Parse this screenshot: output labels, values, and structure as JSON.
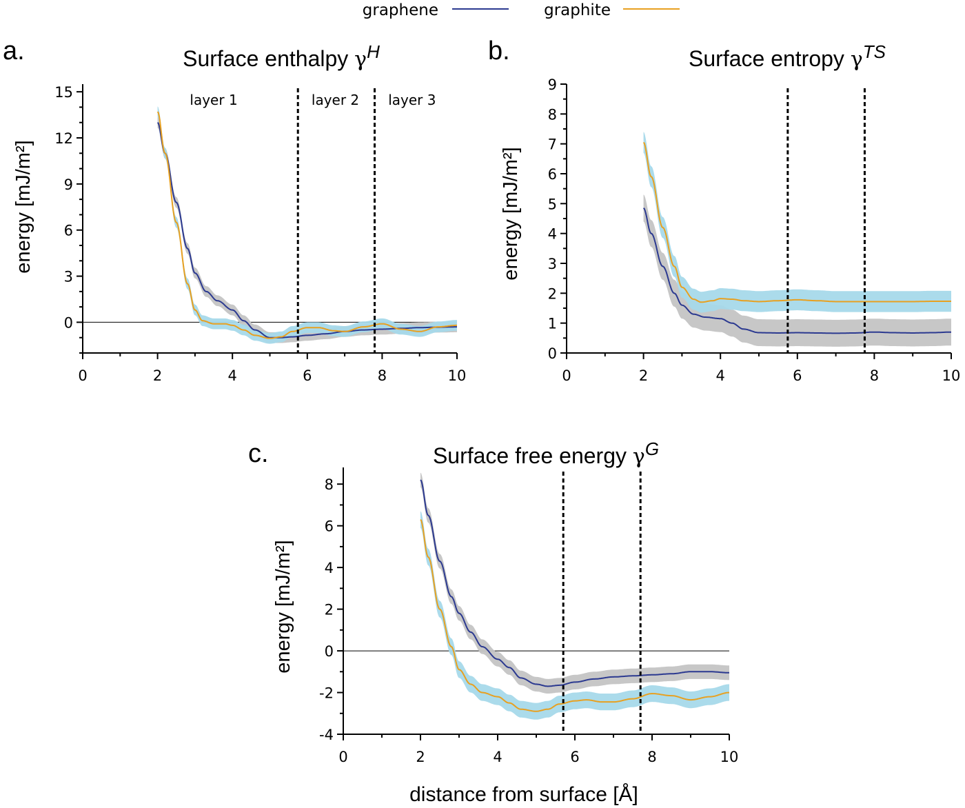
{
  "legend": [
    {
      "name": "graphene",
      "color": "#2b3990"
    },
    {
      "name": "graphite",
      "color": "#e8a020"
    }
  ],
  "colors": {
    "graphene_band": "#c4c4c4",
    "graphite_band": "#a6d9ea",
    "axis": "#000000",
    "zero_line": "#000000",
    "layer_boundary": "#000000"
  },
  "chart_data": [
    {
      "type": "line",
      "panel_letter": "a.",
      "title_main": "Surface enthalpy ",
      "title_gamma": "γ",
      "title_sup": "H",
      "ylabel": "energy [mJ/m²]",
      "xlabel": "",
      "xlim": [
        0,
        10
      ],
      "ylim": [
        -2,
        15.5
      ],
      "xticks": [
        0,
        2,
        4,
        6,
        8,
        10
      ],
      "yticks": [
        0,
        3,
        6,
        9,
        12,
        15
      ],
      "zero_line": true,
      "layer_boundaries": [
        5.75,
        7.8
      ],
      "layer_labels": [
        {
          "text": "layer 1",
          "x": 3.5
        },
        {
          "text": "layer 2",
          "x": 6.75
        },
        {
          "text": "layer 3",
          "x": 8.8
        }
      ],
      "series": [
        {
          "name": "graphene",
          "x": [
            2,
            2.2,
            2.5,
            2.8,
            3.0,
            3.3,
            3.6,
            4.0,
            4.3,
            4.6,
            5.0,
            5.3,
            5.6,
            6.0,
            6.5,
            7.0,
            7.5,
            8.0,
            8.5,
            9.0,
            9.5,
            10
          ],
          "y": [
            13.0,
            11.0,
            7.8,
            4.8,
            3.2,
            2.0,
            1.4,
            0.8,
            0.1,
            -0.5,
            -1.0,
            -1.0,
            -0.95,
            -0.85,
            -0.75,
            -0.6,
            -0.5,
            -0.45,
            -0.4,
            -0.35,
            -0.32,
            -0.3
          ],
          "band": 0.35
        },
        {
          "name": "graphite",
          "x": [
            2,
            2.2,
            2.5,
            2.8,
            3.0,
            3.2,
            3.5,
            3.8,
            4.0,
            4.3,
            4.6,
            5.0,
            5.3,
            5.6,
            6.0,
            6.3,
            6.7,
            7.0,
            7.5,
            8.0,
            8.5,
            9.0,
            9.5,
            10
          ],
          "y": [
            13.7,
            11.0,
            6.5,
            2.5,
            0.8,
            0.1,
            -0.1,
            -0.1,
            -0.2,
            -0.5,
            -0.85,
            -1.05,
            -0.95,
            -0.6,
            -0.35,
            -0.35,
            -0.55,
            -0.6,
            -0.3,
            -0.1,
            -0.45,
            -0.6,
            -0.3,
            -0.2
          ],
          "band": 0.35
        }
      ]
    },
    {
      "type": "line",
      "panel_letter": "b.",
      "title_main": "Surface entropy ",
      "title_gamma": "γ",
      "title_sup": "TS",
      "ylabel": "energy [mJ/m²]",
      "xlabel": "",
      "xlim": [
        0,
        10
      ],
      "ylim": [
        0,
        9
      ],
      "xticks": [
        0,
        2,
        4,
        6,
        8,
        10
      ],
      "yticks": [
        0,
        1,
        2,
        3,
        4,
        5,
        6,
        7,
        8,
        9
      ],
      "zero_line": false,
      "layer_boundaries": [
        5.75,
        7.75
      ],
      "layer_labels": [],
      "series": [
        {
          "name": "graphene",
          "x": [
            2,
            2.2,
            2.5,
            2.8,
            3.0,
            3.3,
            3.6,
            4.0,
            4.3,
            4.6,
            5.0,
            5.5,
            6.0,
            6.5,
            7.0,
            7.5,
            8.0,
            8.5,
            9.0,
            9.5,
            10
          ],
          "y": [
            4.85,
            4.0,
            2.9,
            2.0,
            1.6,
            1.3,
            1.2,
            1.15,
            1.0,
            0.8,
            0.68,
            0.67,
            0.68,
            0.67,
            0.66,
            0.67,
            0.7,
            0.68,
            0.67,
            0.68,
            0.7
          ],
          "band": 0.45
        },
        {
          "name": "graphite",
          "x": [
            2,
            2.2,
            2.5,
            2.8,
            3.0,
            3.3,
            3.5,
            3.8,
            4.0,
            4.3,
            4.6,
            5.0,
            5.5,
            6.0,
            6.5,
            7.0,
            7.5,
            8.0,
            8.5,
            9.0,
            9.5,
            10
          ],
          "y": [
            7.05,
            5.9,
            4.2,
            2.9,
            2.2,
            1.8,
            1.7,
            1.75,
            1.82,
            1.8,
            1.75,
            1.72,
            1.75,
            1.78,
            1.75,
            1.72,
            1.72,
            1.72,
            1.72,
            1.72,
            1.73,
            1.73
          ],
          "band": 0.35
        }
      ]
    },
    {
      "type": "line",
      "panel_letter": "c.",
      "title_main": "Surface free energy ",
      "title_gamma": "γ",
      "title_sup": "G",
      "ylabel": "energy [mJ/m²]",
      "xlabel": "distance from surface [Å]",
      "xlim": [
        0,
        10
      ],
      "ylim": [
        -4,
        8.8
      ],
      "xticks": [
        0,
        2,
        4,
        6,
        8,
        10
      ],
      "yticks": [
        -4,
        -2,
        0,
        2,
        4,
        6,
        8
      ],
      "zero_line": true,
      "layer_boundaries": [
        5.7,
        7.7
      ],
      "layer_labels": [],
      "series": [
        {
          "name": "graphene",
          "x": [
            2,
            2.2,
            2.5,
            2.8,
            3.0,
            3.3,
            3.6,
            4.0,
            4.3,
            4.6,
            5.0,
            5.3,
            5.6,
            6.0,
            6.5,
            7.0,
            7.5,
            8.0,
            8.5,
            9.0,
            9.5,
            10
          ],
          "y": [
            8.2,
            6.5,
            4.3,
            2.6,
            1.8,
            0.9,
            0.2,
            -0.4,
            -0.8,
            -1.3,
            -1.6,
            -1.7,
            -1.65,
            -1.5,
            -1.35,
            -1.25,
            -1.2,
            -1.15,
            -1.1,
            -1.0,
            -1.0,
            -1.05
          ],
          "band": 0.35
        },
        {
          "name": "graphite",
          "x": [
            2,
            2.2,
            2.5,
            2.8,
            3.0,
            3.3,
            3.6,
            4.0,
            4.3,
            4.6,
            5.0,
            5.3,
            5.6,
            6.0,
            6.3,
            6.7,
            7.0,
            7.5,
            8.0,
            8.5,
            9.0,
            9.5,
            10
          ],
          "y": [
            6.3,
            4.5,
            2.0,
            0.2,
            -0.9,
            -1.6,
            -2.0,
            -2.2,
            -2.5,
            -2.8,
            -2.9,
            -2.8,
            -2.55,
            -2.4,
            -2.35,
            -2.45,
            -2.45,
            -2.3,
            -2.05,
            -2.15,
            -2.35,
            -2.2,
            -2.0
          ],
          "band": 0.4
        }
      ]
    }
  ]
}
